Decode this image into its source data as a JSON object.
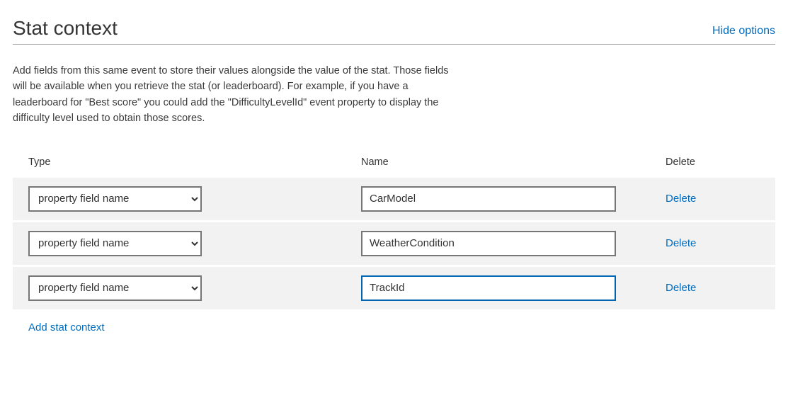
{
  "header": {
    "title": "Stat context",
    "hide_options_label": "Hide options"
  },
  "description": "Add fields from this same event to store their values alongside the value of the stat. Those fields will be available when you retrieve the stat (or leaderboard). For example, if you have a leaderboard for \"Best score\" you could add the \"DifficultyLevelId\" event property to display the difficulty level used to obtain those scores.",
  "columns": {
    "type_label": "Type",
    "name_label": "Name",
    "delete_label": "Delete"
  },
  "type_select_option": "property field name",
  "rows": [
    {
      "name_value": "CarModel",
      "delete_label": "Delete",
      "focused": false
    },
    {
      "name_value": "WeatherCondition",
      "delete_label": "Delete",
      "focused": false
    },
    {
      "name_value": "TrackId",
      "delete_label": "Delete",
      "focused": true
    }
  ],
  "add_link_label": "Add stat context",
  "colors": {
    "link": "#006cbe",
    "border_default": "#767676",
    "border_focus": "#0066b4",
    "row_bg": "#f2f2f2",
    "background": "#ffffff"
  }
}
